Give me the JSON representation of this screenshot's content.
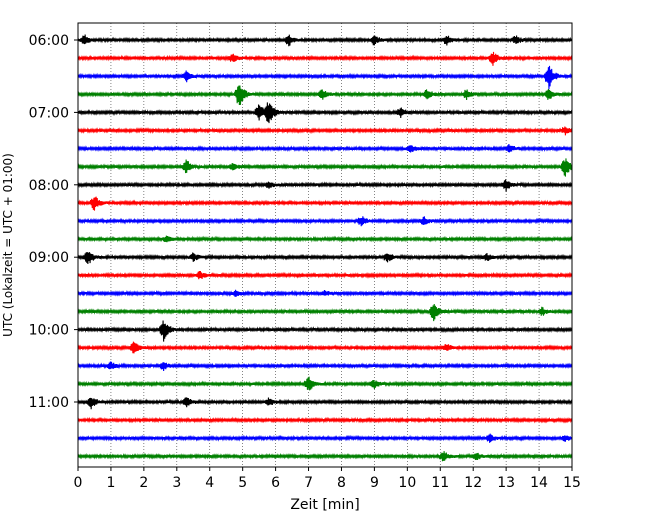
{
  "chart_data": {
    "type": "line",
    "title": "",
    "xlabel": "Zeit  [min]",
    "ylabel": "UTC (Lokalzeit = UTC + 01:00)",
    "xlim": [
      0,
      15
    ],
    "x_ticks": [
      0,
      1,
      2,
      3,
      4,
      5,
      6,
      7,
      8,
      9,
      10,
      11,
      12,
      13,
      14,
      15
    ],
    "x_tick_labels": [
      "0",
      "1",
      "2",
      "3",
      "4",
      "5",
      "6",
      "7",
      "8",
      "9",
      "10",
      "11",
      "12",
      "13",
      "14",
      "15"
    ],
    "vertical_grid": true,
    "grid_style": "dotted",
    "time_tick_labels": [
      "06:00",
      "07:00",
      "08:00",
      "09:00",
      "10:00",
      "11:00"
    ],
    "trace_interval_min": 15,
    "trace_colors": [
      "#000000",
      "#ff0000",
      "#0000ff",
      "#008000"
    ],
    "traces": [
      {
        "start": "06:00",
        "color": "#000000",
        "events": [
          [
            0.2,
            5
          ],
          [
            6.4,
            6
          ],
          [
            9.0,
            5
          ],
          [
            11.2,
            5
          ],
          [
            13.3,
            4
          ]
        ]
      },
      {
        "start": "06:15",
        "color": "#ff0000",
        "events": [
          [
            4.7,
            4
          ],
          [
            12.6,
            7
          ]
        ]
      },
      {
        "start": "06:30",
        "color": "#0000ff",
        "events": [
          [
            3.3,
            5
          ],
          [
            14.3,
            13
          ]
        ]
      },
      {
        "start": "06:45",
        "color": "#008000",
        "events": [
          [
            4.9,
            14
          ],
          [
            7.4,
            6
          ],
          [
            10.6,
            5
          ],
          [
            11.8,
            5
          ],
          [
            14.3,
            6
          ]
        ]
      },
      {
        "start": "07:00",
        "color": "#000000",
        "events": [
          [
            5.5,
            9
          ],
          [
            5.8,
            12
          ],
          [
            9.8,
            5
          ]
        ]
      },
      {
        "start": "07:15",
        "color": "#ff0000",
        "events": [
          [
            14.8,
            4
          ]
        ]
      },
      {
        "start": "07:30",
        "color": "#0000ff",
        "events": [
          [
            10.1,
            4
          ],
          [
            13.1,
            4
          ]
        ]
      },
      {
        "start": "07:45",
        "color": "#008000",
        "events": [
          [
            3.3,
            7
          ],
          [
            4.7,
            4
          ],
          [
            14.8,
            10
          ]
        ]
      },
      {
        "start": "08:00",
        "color": "#000000",
        "events": [
          [
            5.8,
            4
          ],
          [
            13.0,
            6
          ]
        ]
      },
      {
        "start": "08:15",
        "color": "#ff0000",
        "events": [
          [
            0.5,
            8
          ]
        ]
      },
      {
        "start": "08:30",
        "color": "#0000ff",
        "events": [
          [
            8.6,
            5
          ],
          [
            10.5,
            4
          ]
        ]
      },
      {
        "start": "08:45",
        "color": "#008000",
        "events": [
          [
            2.7,
            3
          ]
        ]
      },
      {
        "start": "09:00",
        "color": "#000000",
        "events": [
          [
            0.3,
            8
          ],
          [
            3.5,
            4
          ],
          [
            9.4,
            5
          ],
          [
            12.4,
            4
          ]
        ]
      },
      {
        "start": "09:15",
        "color": "#ff0000",
        "events": [
          [
            3.7,
            4
          ]
        ]
      },
      {
        "start": "09:30",
        "color": "#0000ff",
        "events": [
          [
            4.8,
            3
          ],
          [
            7.5,
            3
          ]
        ]
      },
      {
        "start": "09:45",
        "color": "#008000",
        "events": [
          [
            10.8,
            10
          ],
          [
            14.1,
            4
          ]
        ]
      },
      {
        "start": "10:00",
        "color": "#000000",
        "events": [
          [
            2.6,
            11
          ]
        ]
      },
      {
        "start": "10:15",
        "color": "#ff0000",
        "events": [
          [
            1.7,
            7
          ],
          [
            11.2,
            4
          ]
        ]
      },
      {
        "start": "10:30",
        "color": "#0000ff",
        "events": [
          [
            1.0,
            4
          ],
          [
            2.6,
            4
          ]
        ]
      },
      {
        "start": "10:45",
        "color": "#008000",
        "events": [
          [
            7.0,
            8
          ],
          [
            9.0,
            4
          ]
        ]
      },
      {
        "start": "11:00",
        "color": "#000000",
        "events": [
          [
            0.4,
            6
          ],
          [
            3.3,
            5
          ],
          [
            5.8,
            4
          ]
        ]
      },
      {
        "start": "11:15",
        "color": "#ff0000",
        "events": []
      },
      {
        "start": "11:30",
        "color": "#0000ff",
        "events": [
          [
            12.5,
            4
          ],
          [
            14.8,
            3
          ]
        ]
      },
      {
        "start": "11:45",
        "color": "#008000",
        "events": [
          [
            11.1,
            5
          ],
          [
            12.1,
            4
          ]
        ]
      }
    ]
  }
}
